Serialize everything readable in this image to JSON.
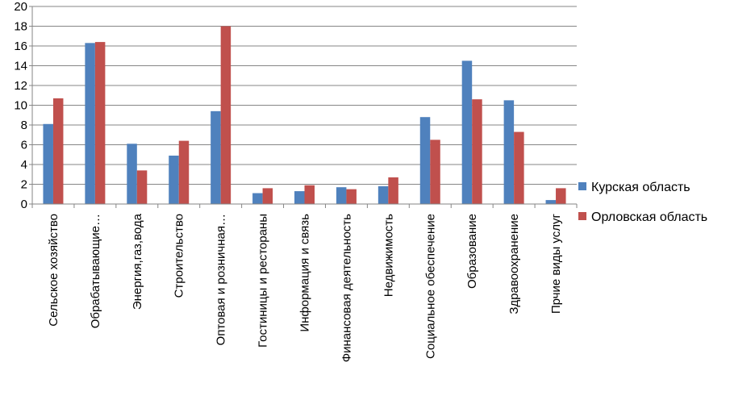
{
  "chart_data": {
    "type": "bar",
    "title": "",
    "xlabel": "",
    "ylabel": "",
    "ylim": [
      0,
      20
    ],
    "yticks": [
      0,
      2,
      4,
      6,
      8,
      10,
      12,
      14,
      16,
      18,
      20
    ],
    "grid": true,
    "legend_position": "right",
    "categories": [
      "Сельское хозяйство",
      "Обрабатывающие…",
      "Энергия,газ,вода",
      "Строительство",
      "Оптовая и розничная…",
      "Гостиницы и рестораны",
      "Информация и связь",
      "Финансовая деятельность",
      "Недвижимость",
      "Социальное обеспечение",
      "Образование",
      "Здравоохранение",
      "Прчие виды услуг"
    ],
    "series": [
      {
        "name": "Курская область",
        "color": "#4f81bd",
        "values": [
          8.1,
          16.3,
          6.1,
          4.9,
          9.4,
          1.1,
          1.3,
          1.7,
          1.8,
          8.8,
          14.5,
          10.5,
          0.4
        ]
      },
      {
        "name": "Орловская область",
        "color": "#c0504d",
        "values": [
          10.7,
          16.4,
          3.4,
          6.4,
          18.0,
          1.6,
          1.9,
          1.5,
          2.7,
          6.5,
          10.6,
          7.3,
          1.6
        ]
      }
    ]
  }
}
